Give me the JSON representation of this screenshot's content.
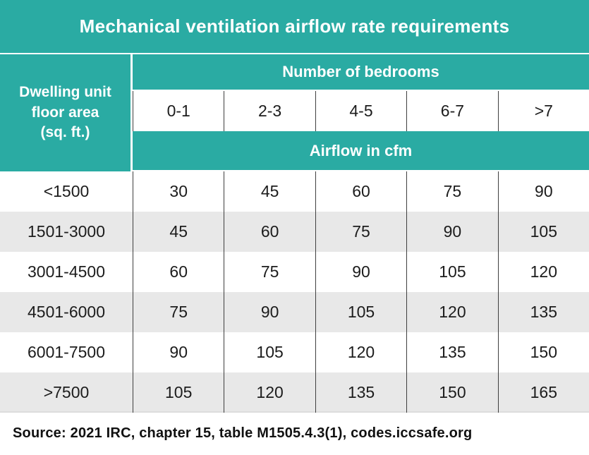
{
  "title": "Mechanical ventilation airflow rate requirements",
  "chart_data": {
    "type": "table",
    "title": "Mechanical ventilation airflow rate requirements",
    "row_group_header": "Dwelling unit floor area (sq. ft.)",
    "row_group_header_lines": [
      "Dwelling unit",
      "floor area",
      "(sq. ft.)"
    ],
    "col_group_header": "Number of bedrooms",
    "columns": [
      "0-1",
      "2-3",
      "4-5",
      "6-7",
      ">7"
    ],
    "unit_label": "Airflow in cfm",
    "rows": [
      {
        "label": "<1500",
        "values": [
          30,
          45,
          60,
          75,
          90
        ]
      },
      {
        "label": "1501-3000",
        "values": [
          45,
          60,
          75,
          90,
          105
        ]
      },
      {
        "label": "3001-4500",
        "values": [
          60,
          75,
          90,
          105,
          120
        ]
      },
      {
        "label": "4501-6000",
        "values": [
          75,
          90,
          105,
          120,
          135
        ]
      },
      {
        "label": "6001-7500",
        "values": [
          90,
          105,
          120,
          135,
          150
        ]
      },
      {
        "label": ">7500",
        "values": [
          105,
          120,
          135,
          150,
          165
        ]
      }
    ]
  },
  "source": "Source: 2021 IRC, chapter 15, table M1505.4.3(1), codes.iccsafe.org",
  "colors": {
    "teal": "#2aaba3",
    "row_alt": "#e8e8e8",
    "divider_line": "#3f3f3f",
    "text": "#1c1c1c"
  }
}
